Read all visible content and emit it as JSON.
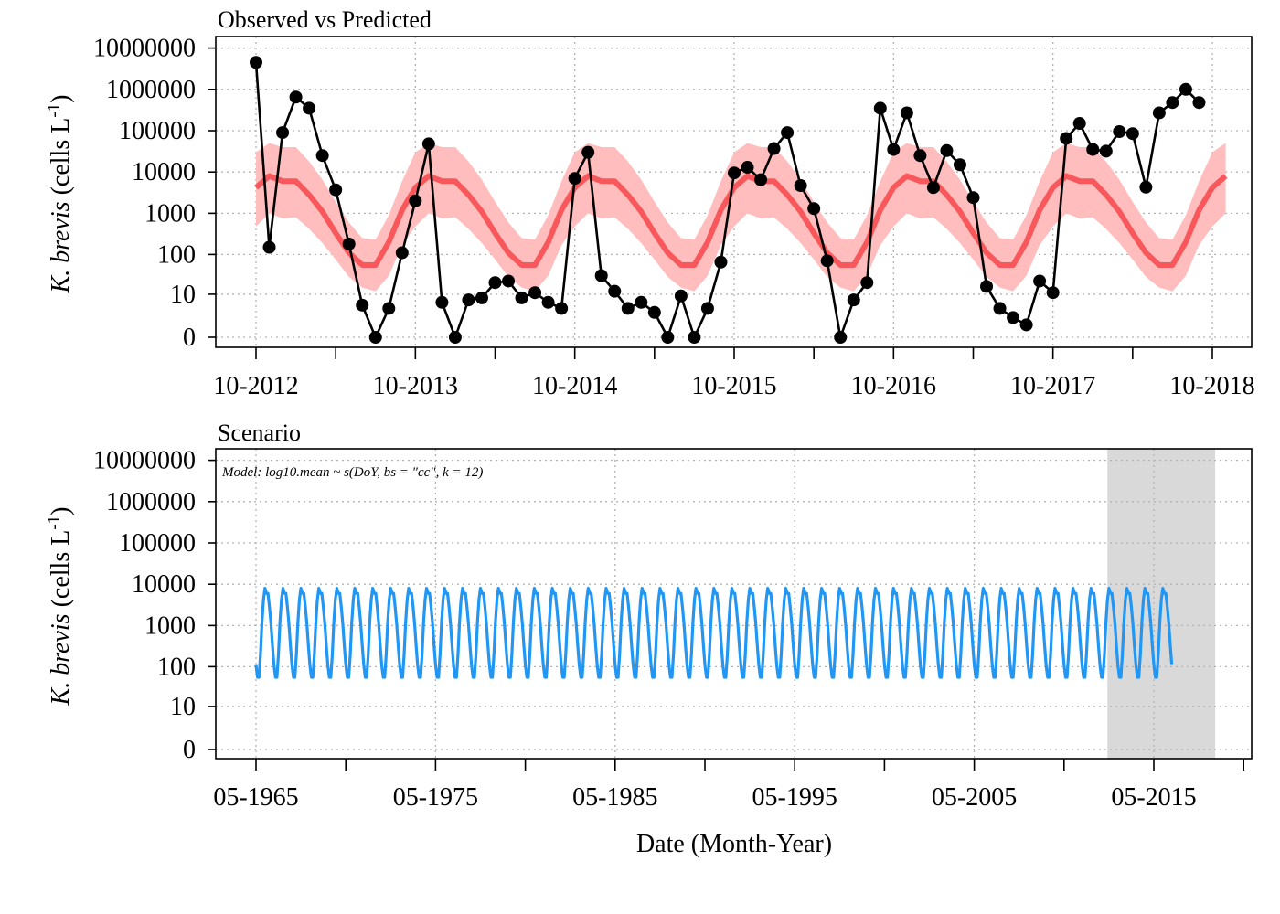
{
  "chart_data": [
    {
      "type": "line",
      "title": "Observed vs Predicted",
      "xlabel": "",
      "ylabel": {
        "italic": "K. brevis",
        "rest": " (cells L",
        "sup": "-1",
        "close": ")"
      },
      "y_scale": "log10(x+1)",
      "y_ticks": [
        "0",
        "10",
        "100",
        "1000",
        "10000",
        "100000",
        "1000000",
        "10000000"
      ],
      "x_tick_labels": [
        "10-2012",
        "10-2013",
        "10-2014",
        "10-2015",
        "10-2016",
        "10-2017",
        "10-2018"
      ],
      "x_range": [
        "2012-10",
        "2018-10"
      ],
      "grid": true,
      "colors": {
        "observed": "#000000",
        "predicted": "#f8585b",
        "band": "#ffbdbd"
      },
      "series": [
        {
          "kind": "observed_points_line",
          "x": [
            "2012-10",
            "2012-11",
            "2012-12",
            "2013-01",
            "2013-02",
            "2013-03",
            "2013-04",
            "2013-05",
            "2013-06",
            "2013-07",
            "2013-08",
            "2013-09",
            "2013-10",
            "2013-11",
            "2013-12",
            "2014-01",
            "2014-02",
            "2014-03",
            "2014-04",
            "2014-05",
            "2014-06",
            "2014-07",
            "2014-08",
            "2014-09",
            "2014-10",
            "2014-11",
            "2014-12",
            "2015-01",
            "2015-02",
            "2015-03",
            "2015-04",
            "2015-05",
            "2015-06",
            "2015-07",
            "2015-08",
            "2015-09",
            "2015-10",
            "2015-11",
            "2015-12",
            "2016-01",
            "2016-02",
            "2016-03",
            "2016-04",
            "2016-05",
            "2016-06",
            "2016-07",
            "2016-08",
            "2016-09",
            "2016-10",
            "2016-11",
            "2016-12",
            "2017-01",
            "2017-02",
            "2017-03",
            "2017-04",
            "2017-05",
            "2017-06",
            "2017-07",
            "2017-08",
            "2017-09",
            "2017-10",
            "2017-11",
            "2017-12",
            "2018-01",
            "2018-02",
            "2018-03",
            "2018-04",
            "2018-05",
            "2018-06",
            "2018-07",
            "2018-08",
            "2018-09"
          ],
          "values": [
            4500000,
            150,
            90000,
            650000,
            350000,
            25000,
            3700,
            180,
            5,
            0,
            4,
            110,
            2000,
            48000,
            6,
            0,
            7,
            8,
            20,
            22,
            8,
            11,
            6,
            4,
            7000,
            30000,
            30,
            12,
            4,
            6,
            3,
            0,
            9,
            0,
            4,
            65,
            9500,
            13000,
            6500,
            37000,
            90000,
            4700,
            1300,
            70,
            0,
            7,
            20,
            350000,
            35000,
            270000,
            25000,
            4200,
            33000,
            15000,
            2400,
            16,
            4,
            2,
            1,
            22,
            11,
            65000,
            150000,
            35000,
            32000,
            95000,
            85000,
            4300,
            270000,
            480000,
            1000000,
            480000
          ]
        },
        {
          "kind": "predicted_mean",
          "x": [
            "2012-10",
            "2012-11",
            "2012-12",
            "2013-01",
            "2013-02",
            "2013-03",
            "2013-04",
            "2013-05",
            "2013-06",
            "2013-07",
            "2013-08",
            "2013-09"
          ],
          "values": [
            4200,
            8000,
            6000,
            6000,
            2800,
            1100,
            330,
            110,
            55,
            55,
            200,
            1200
          ],
          "note": "seasonal cycle repeats every year"
        },
        {
          "kind": "confidence_band",
          "lower": [
            480,
            1000,
            750,
            800,
            420,
            190,
            75,
            28,
            15,
            12,
            30,
            170
          ],
          "upper": [
            30000,
            50000,
            40000,
            40000,
            18000,
            6500,
            1900,
            600,
            250,
            230,
            900,
            6000
          ]
        }
      ]
    },
    {
      "type": "line",
      "title": "Scenario",
      "annotation": "Model: log10.mean ~ s(DoY, bs = \"cc\", k = 12)",
      "xlabel": "Date (Month-Year)",
      "ylabel": {
        "italic": "K. brevis",
        "rest": " (cells L",
        "sup": "-1",
        "close": ")"
      },
      "y_scale": "log10(x+1)",
      "y_ticks": [
        "0",
        "10",
        "100",
        "1000",
        "10000",
        "100000",
        "1000000",
        "10000000"
      ],
      "x_tick_labels": [
        "05-1965",
        "05-1975",
        "05-1985",
        "05-1995",
        "05-2005",
        "05-2015"
      ],
      "x_range": [
        "1965-05",
        "2016-05"
      ],
      "highlight_period": [
        "2012-10",
        "2018-10"
      ],
      "grid": true,
      "colors": {
        "line": "#2196f3",
        "highlight": "#d9d9d9"
      },
      "series": [
        {
          "kind": "seasonal_cycle",
          "cycle_start": "1965-05",
          "cycle_end": "2016-05",
          "monthly_values_from_may": [
            110,
            55,
            55,
            200,
            1200,
            4200,
            8000,
            6000,
            6000,
            2800,
            1100,
            330
          ]
        }
      ]
    }
  ]
}
